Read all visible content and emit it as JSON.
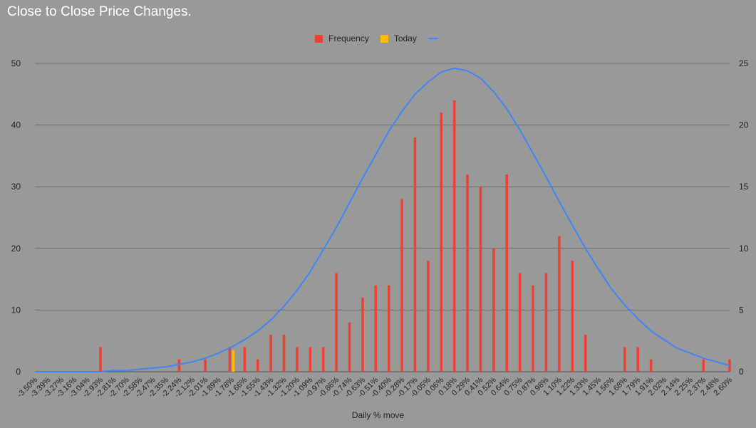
{
  "chart_data": {
    "type": "bar",
    "title": "Close to Close Price Changes.",
    "xlabel": "Daily % move",
    "ylabel": "",
    "ylim": [
      0,
      50
    ],
    "y_ticks": [
      0,
      10,
      20,
      30,
      40,
      50
    ],
    "y2lim": [
      0,
      25
    ],
    "y2_ticks": [
      0,
      5,
      10,
      15,
      20,
      25
    ],
    "grid": true,
    "legend_position": "top-center",
    "colors": {
      "background": "#999999",
      "frequency": "#ea4335",
      "today": "#fbbc04",
      "curve": "#4285f4",
      "grid": "#6e6e6e"
    },
    "categories": [
      "-3.50%",
      "-3.39%",
      "-3.27%",
      "-3.16%",
      "-3.04%",
      "-2.93%",
      "-2.81%",
      "-2.70%",
      "-2.58%",
      "-2.47%",
      "-2.35%",
      "-2.24%",
      "-2.12%",
      "-2.01%",
      "-1.89%",
      "-1.78%",
      "-1.66%",
      "-1.55%",
      "-1.43%",
      "-1.32%",
      "-1.20%",
      "-1.09%",
      "-0.97%",
      "-0.86%",
      "-0.74%",
      "-0.63%",
      "-0.51%",
      "-0.40%",
      "-0.28%",
      "-0.17%",
      "-0.05%",
      "0.06%",
      "0.18%",
      "0.29%",
      "0.41%",
      "0.52%",
      "0.64%",
      "0.75%",
      "0.87%",
      "0.98%",
      "1.10%",
      "1.22%",
      "1.33%",
      "1.45%",
      "1.56%",
      "1.68%",
      "1.79%",
      "1.91%",
      "2.02%",
      "2.14%",
      "2.25%",
      "2.37%",
      "2.48%",
      "2.60%"
    ],
    "series": [
      {
        "name": "Frequency",
        "type": "bar",
        "axis": "left",
        "values": [
          0,
          0,
          0,
          0,
          0,
          4,
          0,
          0,
          0,
          0,
          0,
          2,
          0,
          2,
          0,
          4,
          4,
          2,
          6,
          6,
          4,
          4,
          4,
          16,
          8,
          12,
          14,
          14,
          28,
          38,
          18,
          42,
          44,
          32,
          30,
          20,
          32,
          16,
          14,
          16,
          22,
          18,
          6,
          0,
          0,
          4,
          4,
          2,
          0,
          0,
          0,
          2,
          0,
          2
        ]
      },
      {
        "name": "Today",
        "type": "bar",
        "axis": "left",
        "values": [
          0,
          0,
          0,
          0,
          0,
          0,
          0,
          0,
          0,
          0,
          0,
          0,
          0,
          0,
          0,
          3.5,
          0,
          0,
          0,
          0,
          0,
          0,
          0,
          0,
          0,
          0,
          0,
          0,
          0,
          0,
          0,
          0,
          0,
          0,
          0,
          0,
          0,
          0,
          0,
          0,
          0,
          0,
          0,
          0,
          0,
          0,
          0,
          0,
          0,
          0,
          0,
          0,
          0,
          0
        ]
      },
      {
        "name": "",
        "type": "line",
        "axis": "right",
        "values": [
          0.0,
          0.0,
          0.0,
          0.0,
          0.0,
          0.0,
          0.1,
          0.1,
          0.2,
          0.3,
          0.4,
          0.6,
          0.8,
          1.1,
          1.5,
          2.0,
          2.6,
          3.3,
          4.2,
          5.3,
          6.6,
          8.1,
          9.9,
          11.7,
          13.7,
          15.7,
          17.6,
          19.5,
          21.1,
          22.5,
          23.5,
          24.3,
          24.6,
          24.4,
          23.8,
          22.7,
          21.3,
          19.6,
          17.7,
          15.8,
          13.8,
          11.9,
          10.0,
          8.3,
          6.7,
          5.4,
          4.3,
          3.3,
          2.6,
          1.9,
          1.5,
          1.1,
          0.8,
          0.5
        ]
      }
    ]
  }
}
